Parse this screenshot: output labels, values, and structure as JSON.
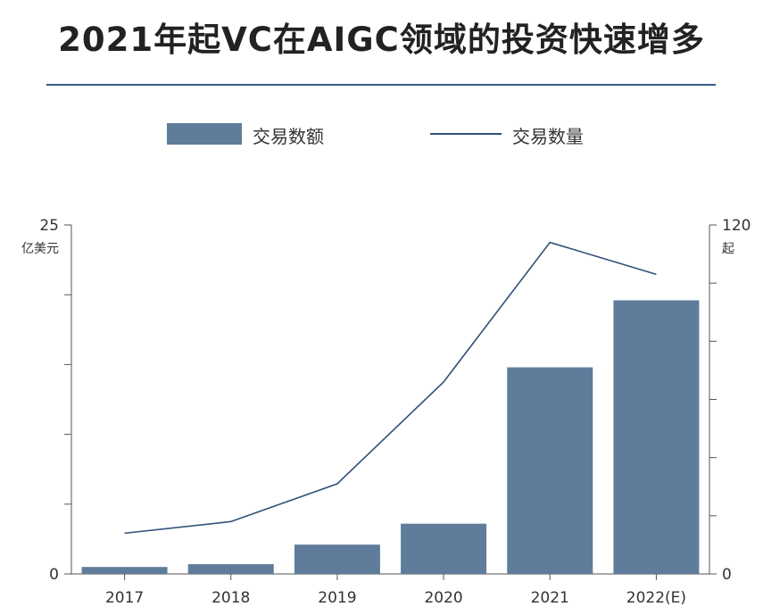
{
  "title": "2021年起VC在AIGC领域的投资快速增多",
  "legend": {
    "bar_label": "交易数额",
    "line_label": "交易数量"
  },
  "colors": {
    "bar": "#5f7d9b",
    "line": "#2f5079",
    "axis": "#555555",
    "rule": "#3b5b8a"
  },
  "chart_data": {
    "type": "bar",
    "categories": [
      "2017",
      "2018",
      "2019",
      "2020",
      "2021",
      "2022(E)"
    ],
    "series": [
      {
        "name": "交易数额",
        "type": "bar",
        "axis": "left",
        "values": [
          0.5,
          0.7,
          2.1,
          3.6,
          14.8,
          19.6
        ]
      },
      {
        "name": "交易数量",
        "type": "line",
        "axis": "right",
        "values": [
          14,
          18,
          31,
          66,
          114,
          103
        ]
      }
    ],
    "y_left": {
      "min": 0,
      "max": 25,
      "unit": "亿美元",
      "tick_labels": [
        "0",
        "25"
      ]
    },
    "y_right": {
      "min": 0,
      "max": 120,
      "unit": "起",
      "tick_labels": [
        "0",
        "120"
      ]
    },
    "grid": false
  }
}
